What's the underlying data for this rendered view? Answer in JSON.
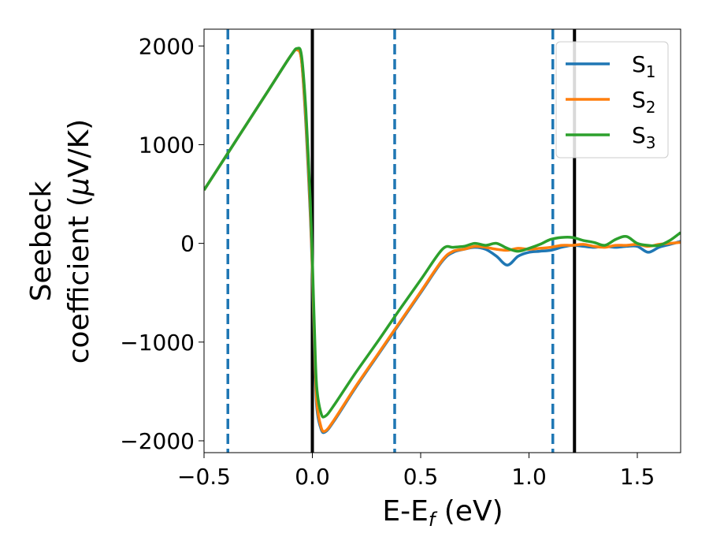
{
  "chart_data": {
    "type": "line",
    "xlabel": {
      "main": "E-E",
      "sub": "f",
      "rest": " (eV)"
    },
    "ylabel": {
      "line1": "Seebeck",
      "line2_prefix": "coefficient  (",
      "mu": "μ",
      "line2_suffix": "V/K)"
    },
    "xlim": [
      -0.5,
      1.7
    ],
    "ylim": [
      -2120,
      2170
    ],
    "xticks": [
      -0.5,
      0.0,
      0.5,
      1.0,
      1.5
    ],
    "xtick_labels": [
      "−0.5",
      "0.0",
      "0.5",
      "1.0",
      "1.5"
    ],
    "yticks": [
      -2000,
      -1000,
      0,
      1000,
      2000
    ],
    "ytick_labels": [
      "−2000",
      "−1000",
      "0",
      "1000",
      "2000"
    ],
    "grid": false,
    "legend_position": "top-right",
    "vertical_lines": [
      {
        "x": -0.39,
        "style": "dashed",
        "color": "#1f77b4"
      },
      {
        "x": 0.0,
        "style": "solid",
        "color": "#000000"
      },
      {
        "x": 0.38,
        "style": "dashed",
        "color": "#1f77b4"
      },
      {
        "x": 1.11,
        "style": "dashed",
        "color": "#1f77b4"
      },
      {
        "x": 1.21,
        "style": "solid",
        "color": "#000000"
      }
    ],
    "series": [
      {
        "name": "S",
        "sub": "1",
        "color": "#1f77b4",
        "x": [
          -0.5,
          -0.4,
          -0.3,
          -0.2,
          -0.1,
          -0.07,
          -0.05,
          -0.03,
          -0.01,
          0.0,
          0.01,
          0.02,
          0.04,
          0.06,
          0.1,
          0.2,
          0.3,
          0.4,
          0.5,
          0.6,
          0.65,
          0.7,
          0.75,
          0.8,
          0.85,
          0.9,
          0.95,
          1.0,
          1.05,
          1.1,
          1.15,
          1.2,
          1.25,
          1.3,
          1.35,
          1.4,
          1.45,
          1.5,
          1.55,
          1.6,
          1.65,
          1.7
        ],
        "y": [
          540,
          880,
          1220,
          1560,
          1900,
          1960,
          1850,
          1200,
          300,
          -300,
          -1100,
          -1650,
          -1880,
          -1910,
          -1800,
          -1460,
          -1140,
          -820,
          -500,
          -180,
          -90,
          -60,
          -40,
          -60,
          -130,
          -220,
          -130,
          -90,
          -80,
          -70,
          -40,
          -20,
          -30,
          -40,
          -30,
          -40,
          -30,
          -30,
          -90,
          -40,
          -10,
          20
        ]
      },
      {
        "name": "S",
        "sub": "2",
        "color": "#ff7f0e",
        "x": [
          -0.5,
          -0.4,
          -0.3,
          -0.2,
          -0.1,
          -0.07,
          -0.05,
          -0.03,
          -0.01,
          0.0,
          0.01,
          0.02,
          0.04,
          0.06,
          0.1,
          0.2,
          0.3,
          0.4,
          0.5,
          0.6,
          0.65,
          0.7,
          0.75,
          0.8,
          0.85,
          0.9,
          0.95,
          1.0,
          1.05,
          1.1,
          1.15,
          1.2,
          1.25,
          1.3,
          1.35,
          1.4,
          1.45,
          1.5,
          1.55,
          1.6,
          1.65,
          1.7
        ],
        "y": [
          540,
          880,
          1220,
          1560,
          1900,
          1960,
          1850,
          1250,
          350,
          -250,
          -1000,
          -1600,
          -1860,
          -1900,
          -1790,
          -1450,
          -1130,
          -810,
          -490,
          -170,
          -80,
          -60,
          -30,
          -40,
          -60,
          -70,
          -50,
          -60,
          -50,
          -40,
          -20,
          -20,
          -10,
          -30,
          -40,
          -20,
          -20,
          -10,
          -30,
          -10,
          0,
          10
        ]
      },
      {
        "name": "S",
        "sub": "3",
        "color": "#2ca02c",
        "x": [
          -0.5,
          -0.4,
          -0.3,
          -0.2,
          -0.1,
          -0.07,
          -0.05,
          -0.03,
          -0.01,
          0.0,
          0.01,
          0.02,
          0.04,
          0.06,
          0.1,
          0.2,
          0.3,
          0.4,
          0.5,
          0.6,
          0.65,
          0.7,
          0.75,
          0.8,
          0.85,
          0.9,
          0.95,
          1.0,
          1.05,
          1.1,
          1.15,
          1.2,
          1.25,
          1.3,
          1.35,
          1.4,
          1.45,
          1.5,
          1.55,
          1.6,
          1.65,
          1.7
        ],
        "y": [
          540,
          880,
          1220,
          1560,
          1900,
          1975,
          1900,
          1350,
          450,
          -150,
          -900,
          -1450,
          -1720,
          -1750,
          -1640,
          -1310,
          -1000,
          -680,
          -370,
          -60,
          -40,
          -30,
          0,
          -20,
          0,
          -50,
          -80,
          -50,
          -10,
          40,
          60,
          60,
          30,
          10,
          -20,
          40,
          70,
          0,
          -20,
          -20,
          30,
          110
        ]
      }
    ]
  }
}
